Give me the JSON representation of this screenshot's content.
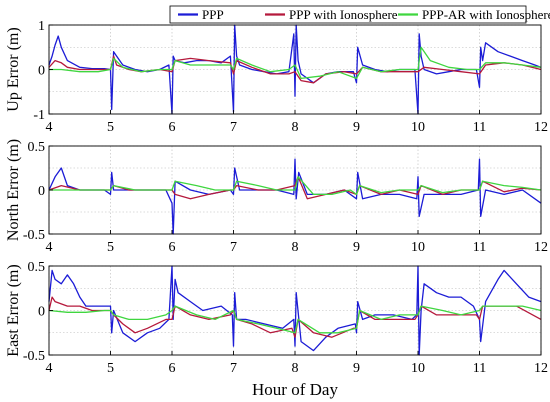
{
  "chart_data": {
    "type": "line",
    "xlabel": "Hour of Day",
    "xlim": [
      4,
      12
    ],
    "xticks": [
      4,
      5,
      6,
      7,
      8,
      9,
      10,
      11,
      12
    ],
    "xticklabels": [
      "4",
      "5",
      "6",
      "7",
      "8",
      "9",
      "10",
      "11",
      "12"
    ],
    "grid": true,
    "legend": {
      "placement": "top-right",
      "entries": [
        "PPP",
        "PPP with Ionosphere",
        "PPP-AR with Ionosphere"
      ]
    },
    "colors": {
      "PPP": "#1c1cd6",
      "PPP with Ionosphere": "#b5193c",
      "PPP-AR with Ionosphere": "#3fd63f"
    },
    "panels": [
      {
        "ylabel": "Up Error (m)",
        "ylim": [
          -1,
          1
        ],
        "yticks": [
          -1,
          0,
          1
        ],
        "yticklabels": [
          "-1",
          "0",
          "1"
        ],
        "series": [
          {
            "name": "PPP",
            "x": [
              4,
              4.05,
              4.1,
              4.15,
              4.2,
              4.3,
              4.5,
              4.7,
              4.9,
              5.0,
              5.02,
              5.05,
              5.1,
              5.2,
              5.4,
              5.6,
              5.8,
              5.95,
              6.0,
              6.02,
              6.05,
              6.2,
              6.4,
              6.6,
              6.8,
              6.95,
              7.0,
              7.02,
              7.05,
              7.1,
              7.3,
              7.5,
              7.7,
              7.9,
              7.98,
              8.0,
              8.02,
              8.05,
              8.1,
              8.3,
              8.5,
              8.7,
              8.95,
              9.0,
              9.02,
              9.1,
              9.3,
              9.5,
              9.7,
              9.95,
              10.0,
              10.02,
              10.05,
              10.1,
              10.3,
              10.5,
              10.7,
              10.95,
              11.0,
              11.02,
              11.05,
              11.1,
              11.3,
              11.5,
              11.7,
              11.9,
              12
            ],
            "y": [
              0.1,
              0.3,
              0.55,
              0.75,
              0.5,
              0.2,
              0.05,
              0.02,
              0.02,
              0.0,
              -0.9,
              0.4,
              0.3,
              0.1,
              0.0,
              -0.05,
              0.0,
              0.1,
              -1.0,
              0.3,
              0.2,
              0.15,
              0.2,
              0.2,
              0.15,
              0.3,
              -0.95,
              1.0,
              0.3,
              0.1,
              0.0,
              -0.05,
              -0.1,
              -0.05,
              0.8,
              -0.6,
              1.0,
              0.2,
              -0.1,
              -0.3,
              -0.1,
              -0.05,
              -0.05,
              -0.3,
              0.5,
              0.1,
              0.0,
              -0.05,
              0.0,
              0.0,
              -1.0,
              0.8,
              0.3,
              0.0,
              -0.1,
              -0.05,
              0.0,
              0.0,
              -0.4,
              0.5,
              0.2,
              0.6,
              0.4,
              0.3,
              0.2,
              0.1,
              0.05
            ]
          },
          {
            "name": "PPP with Ionosphere",
            "x": [
              4,
              4.1,
              4.2,
              4.3,
              4.5,
              4.7,
              4.9,
              5.0,
              5.05,
              5.1,
              5.3,
              5.5,
              5.8,
              6.0,
              6.05,
              6.3,
              6.6,
              6.95,
              7.0,
              7.05,
              7.3,
              7.6,
              7.9,
              8.0,
              8.1,
              8.3,
              8.5,
              8.8,
              9.0,
              9.1,
              9.4,
              9.7,
              10.0,
              10.1,
              10.4,
              10.7,
              11.0,
              11.1,
              11.4,
              11.7,
              12
            ],
            "y": [
              0.05,
              0.2,
              0.15,
              0.05,
              0.0,
              0.0,
              0.0,
              0.0,
              0.3,
              0.1,
              0.0,
              -0.05,
              0.0,
              -0.05,
              0.2,
              0.25,
              0.2,
              0.15,
              -0.1,
              0.2,
              0.05,
              -0.1,
              -0.1,
              -0.05,
              -0.25,
              -0.3,
              -0.1,
              -0.05,
              -0.1,
              0.05,
              -0.05,
              -0.05,
              -0.05,
              0.05,
              0.0,
              -0.05,
              -0.1,
              0.1,
              0.15,
              0.1,
              0.0
            ]
          },
          {
            "name": "PPP-AR with Ionosphere",
            "x": [
              4,
              4.2,
              4.5,
              4.8,
              5.0,
              5.05,
              5.2,
              5.5,
              5.8,
              6.0,
              6.05,
              6.3,
              6.6,
              6.95,
              7.0,
              7.05,
              7.3,
              7.6,
              7.9,
              8.0,
              8.1,
              8.4,
              8.7,
              9.0,
              9.1,
              9.4,
              9.7,
              10.0,
              10.05,
              10.2,
              10.5,
              10.8,
              11.0,
              11.1,
              11.4,
              11.7,
              12
            ],
            "y": [
              0.0,
              0.0,
              -0.05,
              -0.05,
              0.0,
              0.25,
              0.05,
              -0.05,
              0.0,
              0.0,
              0.2,
              0.1,
              0.1,
              0.1,
              0.0,
              0.25,
              0.1,
              -0.05,
              0.0,
              0.1,
              -0.2,
              -0.15,
              -0.05,
              -0.2,
              0.05,
              -0.05,
              0.0,
              0.0,
              0.5,
              0.2,
              0.05,
              0.0,
              0.0,
              0.15,
              0.15,
              0.1,
              0.05
            ]
          }
        ]
      },
      {
        "ylabel": "North Error (m)",
        "ylim": [
          -0.5,
          0.5
        ],
        "yticks": [
          -0.5,
          0,
          0.5
        ],
        "yticklabels": [
          "-0.5",
          "0",
          "0.5"
        ],
        "series": [
          {
            "name": "PPP",
            "x": [
              4,
              4.1,
              4.2,
              4.3,
              4.5,
              4.7,
              4.9,
              5.0,
              5.02,
              5.05,
              5.3,
              5.6,
              5.9,
              6.0,
              6.02,
              6.05,
              6.3,
              6.6,
              6.95,
              7.0,
              7.02,
              7.1,
              7.4,
              7.7,
              7.98,
              8.0,
              8.02,
              8.06,
              8.2,
              8.5,
              8.8,
              9.0,
              9.02,
              9.1,
              9.4,
              9.7,
              9.98,
              10.0,
              10.02,
              10.1,
              10.4,
              10.7,
              10.98,
              11.0,
              11.02,
              11.1,
              11.4,
              11.7,
              12
            ],
            "y": [
              0.0,
              0.15,
              0.25,
              0.05,
              0.0,
              0.0,
              0.0,
              -0.05,
              0.2,
              0.0,
              0.0,
              0.0,
              0.0,
              -0.15,
              -0.5,
              0.1,
              0.0,
              -0.05,
              0.0,
              -0.05,
              0.25,
              0.0,
              0.0,
              0.0,
              -0.05,
              0.35,
              -0.1,
              0.2,
              -0.05,
              -0.05,
              0.0,
              -0.1,
              0.2,
              -0.1,
              -0.05,
              -0.05,
              -0.1,
              0.15,
              -0.3,
              -0.05,
              -0.05,
              -0.05,
              0.0,
              0.35,
              -0.3,
              0.0,
              -0.05,
              0.0,
              -0.15
            ]
          },
          {
            "name": "PPP with Ionosphere",
            "x": [
              4,
              4.2,
              4.5,
              4.8,
              5.0,
              5.05,
              5.3,
              5.6,
              5.9,
              6.0,
              6.05,
              6.3,
              6.6,
              6.95,
              7.0,
              7.05,
              7.4,
              7.7,
              8.0,
              8.05,
              8.2,
              8.5,
              8.8,
              9.0,
              9.05,
              9.4,
              9.7,
              10.0,
              10.05,
              10.4,
              10.7,
              11.0,
              11.05,
              11.4,
              11.7,
              12
            ],
            "y": [
              0.0,
              0.05,
              0.0,
              0.0,
              0.0,
              0.05,
              0.0,
              0.0,
              0.0,
              0.0,
              -0.05,
              -0.1,
              -0.05,
              0.0,
              0.0,
              0.05,
              0.0,
              0.0,
              0.05,
              0.15,
              -0.1,
              -0.05,
              0.0,
              -0.05,
              0.05,
              -0.05,
              0.0,
              -0.05,
              0.05,
              -0.05,
              0.0,
              0.0,
              0.1,
              -0.02,
              0.02,
              0.0
            ]
          },
          {
            "name": "PPP-AR with Ionosphere",
            "x": [
              4,
              4.3,
              4.6,
              4.9,
              5.0,
              5.05,
              5.4,
              5.7,
              6.0,
              6.05,
              6.4,
              6.7,
              7.0,
              7.05,
              7.4,
              7.7,
              8.0,
              8.05,
              8.3,
              8.6,
              8.9,
              9.0,
              9.05,
              9.4,
              9.7,
              10.0,
              10.05,
              10.4,
              10.7,
              11.0,
              11.05,
              11.4,
              11.7,
              12
            ],
            "y": [
              0.0,
              0.0,
              0.0,
              0.0,
              0.0,
              0.05,
              0.0,
              0.0,
              0.0,
              0.1,
              0.05,
              0.0,
              0.0,
              0.1,
              0.05,
              0.0,
              0.0,
              0.15,
              -0.05,
              -0.05,
              0.0,
              -0.05,
              0.05,
              -0.03,
              0.0,
              0.0,
              0.05,
              -0.03,
              0.0,
              0.0,
              0.1,
              0.05,
              0.03,
              0.0
            ]
          }
        ]
      },
      {
        "ylabel": "East Error (m)",
        "ylim": [
          -0.5,
          0.5
        ],
        "yticks": [
          -0.5,
          0,
          0.5
        ],
        "yticklabels": [
          "-0.5",
          "0",
          "0.5"
        ],
        "series": [
          {
            "name": "PPP",
            "x": [
              4,
              4.05,
              4.1,
              4.2,
              4.3,
              4.4,
              4.5,
              4.6,
              4.8,
              5.0,
              5.02,
              5.05,
              5.2,
              5.4,
              5.6,
              5.8,
              5.95,
              6.0,
              6.02,
              6.05,
              6.1,
              6.3,
              6.5,
              6.8,
              6.98,
              7.0,
              7.02,
              7.05,
              7.2,
              7.5,
              7.8,
              7.98,
              8.0,
              8.02,
              8.1,
              8.3,
              8.5,
              8.7,
              8.98,
              9.0,
              9.02,
              9.1,
              9.3,
              9.6,
              9.9,
              9.98,
              10.0,
              10.02,
              10.05,
              10.1,
              10.3,
              10.5,
              10.7,
              10.9,
              11.0,
              11.02,
              11.1,
              11.3,
              11.4,
              11.6,
              11.8,
              12
            ],
            "y": [
              0.1,
              0.45,
              0.35,
              0.3,
              0.4,
              0.3,
              0.15,
              0.05,
              0.05,
              0.05,
              -0.25,
              0.0,
              -0.25,
              -0.35,
              -0.25,
              -0.2,
              -0.1,
              0.5,
              -0.1,
              0.35,
              0.2,
              0.1,
              0.0,
              0.05,
              -0.05,
              -0.4,
              0.2,
              -0.1,
              -0.1,
              -0.15,
              -0.2,
              -0.1,
              -0.4,
              0.2,
              -0.35,
              -0.45,
              -0.3,
              -0.2,
              -0.15,
              -0.25,
              0.1,
              -0.1,
              -0.05,
              -0.05,
              -0.1,
              -0.05,
              0.5,
              -0.5,
              0.0,
              0.3,
              0.2,
              0.15,
              0.15,
              0.05,
              -0.1,
              -0.35,
              0.1,
              0.35,
              0.45,
              0.3,
              0.15,
              0.1
            ]
          },
          {
            "name": "PPP with Ionosphere",
            "x": [
              4,
              4.05,
              4.1,
              4.3,
              4.5,
              4.7,
              5.0,
              5.05,
              5.2,
              5.4,
              5.6,
              5.9,
              6.0,
              6.05,
              6.3,
              6.6,
              6.95,
              7.0,
              7.05,
              7.3,
              7.6,
              7.95,
              8.0,
              8.05,
              8.3,
              8.6,
              8.95,
              9.0,
              9.05,
              9.3,
              9.6,
              9.95,
              10.0,
              10.05,
              10.3,
              10.6,
              10.95,
              11.0,
              11.05,
              11.3,
              11.6,
              12
            ],
            "y": [
              0.0,
              0.15,
              0.1,
              0.05,
              0.05,
              0.0,
              0.0,
              -0.05,
              -0.15,
              -0.25,
              -0.2,
              -0.1,
              -0.1,
              0.05,
              -0.05,
              -0.1,
              -0.05,
              0.0,
              -0.1,
              -0.15,
              -0.25,
              -0.2,
              -0.3,
              -0.1,
              -0.25,
              -0.3,
              -0.2,
              -0.2,
              0.0,
              -0.1,
              -0.1,
              -0.1,
              -0.05,
              0.05,
              -0.05,
              -0.05,
              -0.05,
              -0.1,
              0.05,
              0.05,
              0.05,
              -0.1
            ]
          },
          {
            "name": "PPP-AR with Ionosphere",
            "x": [
              4,
              4.3,
              4.6,
              4.9,
              5.0,
              5.05,
              5.3,
              5.6,
              5.9,
              6.0,
              6.05,
              6.4,
              6.7,
              7.0,
              7.05,
              7.4,
              7.7,
              8.0,
              8.05,
              8.4,
              8.7,
              9.0,
              9.05,
              9.4,
              9.7,
              10.0,
              10.05,
              10.4,
              10.7,
              11.0,
              11.05,
              11.4,
              11.7,
              12
            ],
            "y": [
              0.0,
              -0.02,
              -0.02,
              0.0,
              0.0,
              -0.05,
              -0.1,
              -0.1,
              -0.05,
              0.0,
              0.05,
              -0.05,
              -0.1,
              0.0,
              -0.1,
              -0.15,
              -0.2,
              -0.25,
              -0.1,
              -0.25,
              -0.25,
              -0.2,
              0.0,
              -0.1,
              -0.05,
              -0.05,
              0.05,
              0.0,
              -0.05,
              0.0,
              0.05,
              0.05,
              0.05,
              0.0
            ]
          }
        ]
      }
    ]
  }
}
